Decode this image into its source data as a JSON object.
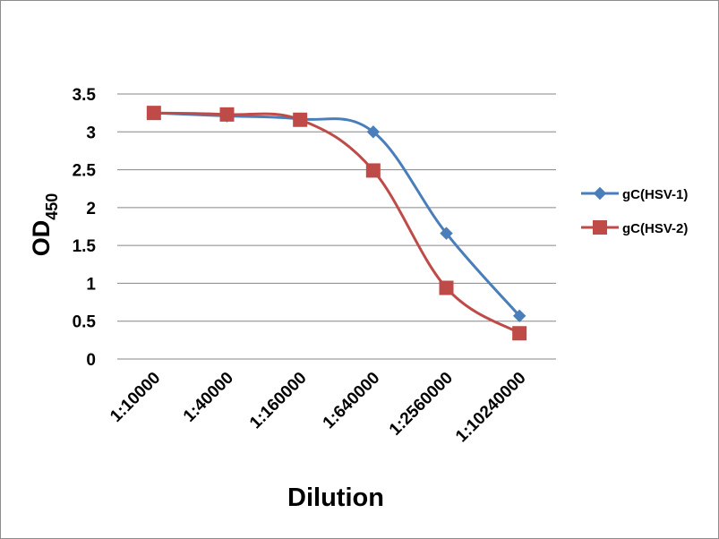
{
  "chart_data": {
    "type": "line",
    "categories": [
      "1:10000",
      "1:40000",
      "1:160000",
      "1:640000",
      "1:2560000",
      "1:10240000"
    ],
    "series": [
      {
        "name": "gC(HSV-1)",
        "values": [
          3.25,
          3.21,
          3.17,
          3.0,
          1.66,
          0.57
        ],
        "color": "#4a7ebb",
        "marker": "diamond"
      },
      {
        "name": "gC(HSV-2)",
        "values": [
          3.25,
          3.23,
          3.16,
          2.49,
          0.94,
          0.34
        ],
        "color": "#be4b48",
        "marker": "square"
      }
    ],
    "xlabel": "Dilution",
    "ylabel_main": "OD",
    "ylabel_sub": "450",
    "ylim": [
      0,
      3.5
    ],
    "yticks": [
      "0",
      "0.5",
      "1",
      "1.5",
      "2",
      "2.5",
      "3",
      "3.5"
    ],
    "grid": true,
    "legend_position": "right",
    "smoothed": true
  }
}
